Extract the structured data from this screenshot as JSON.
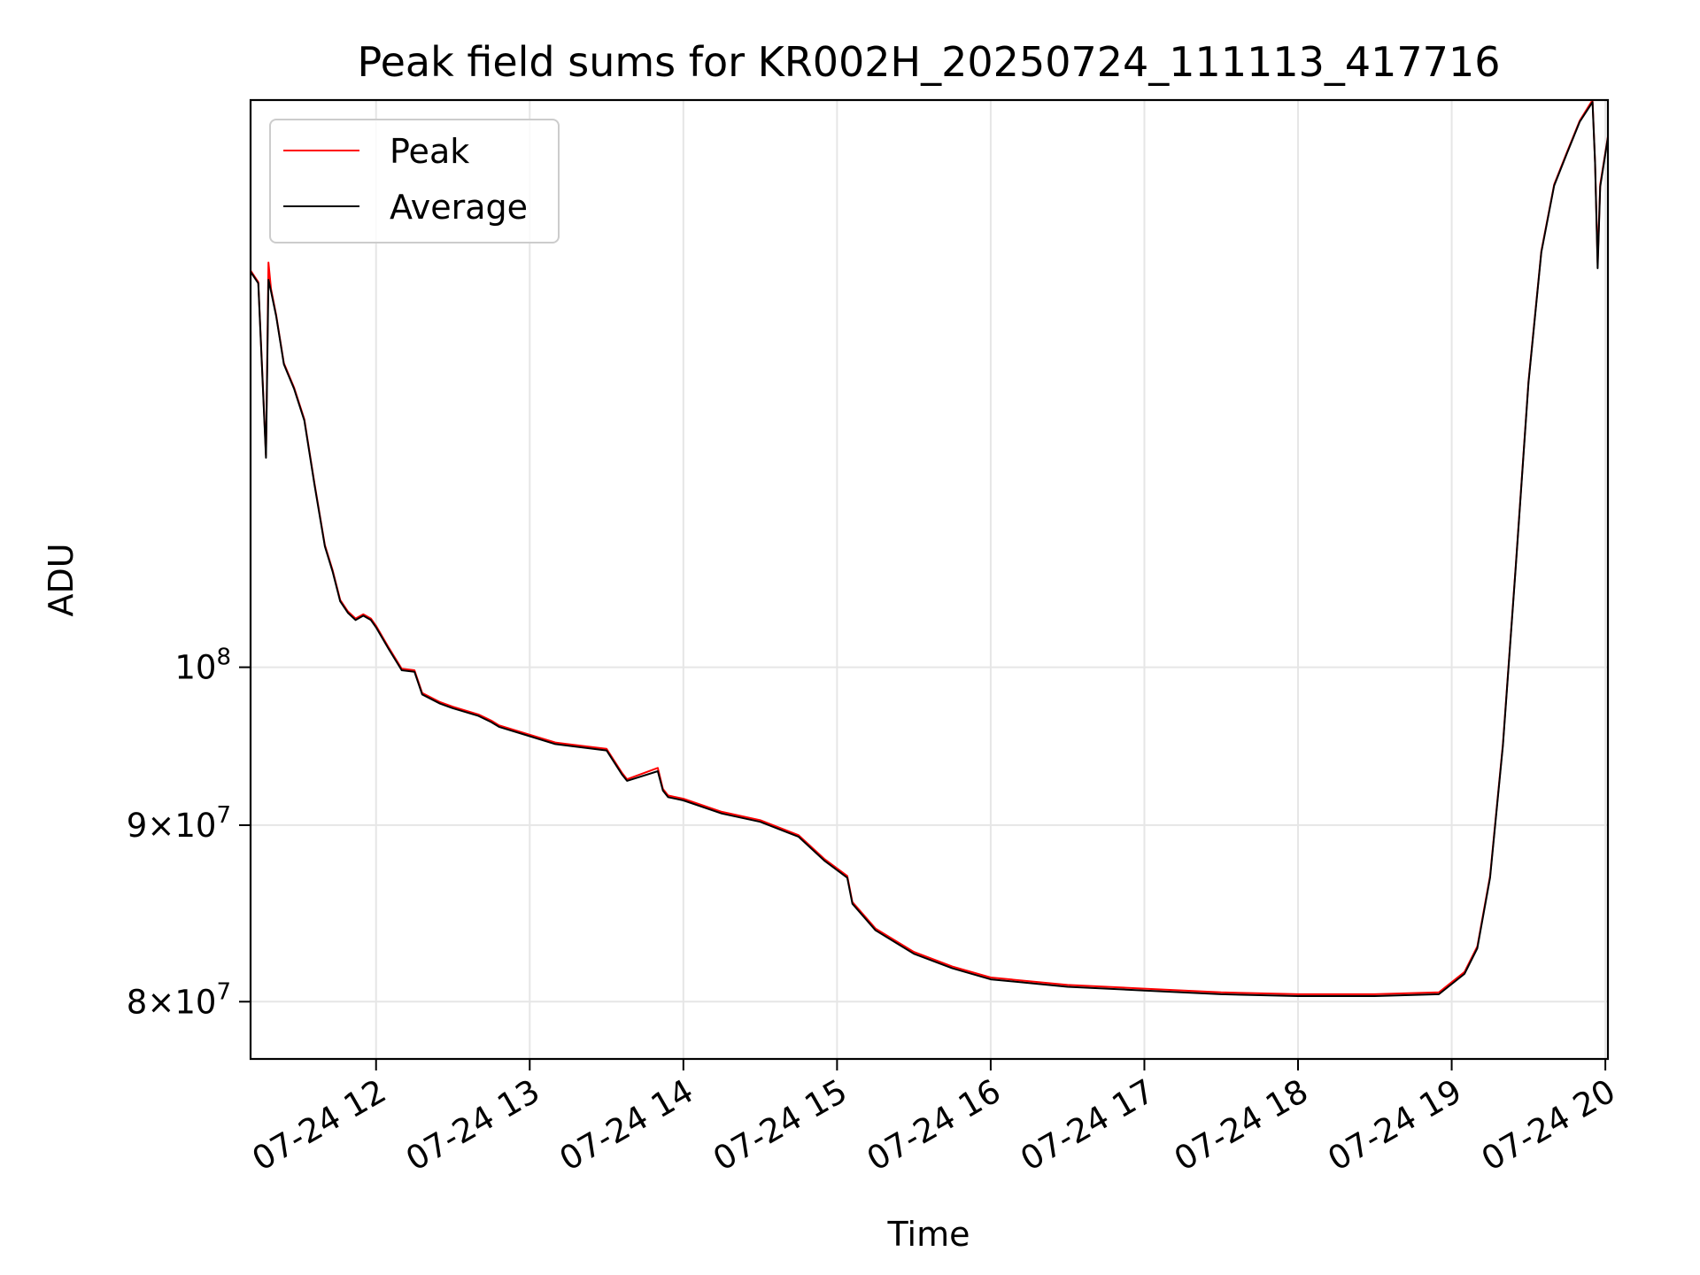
{
  "chart_data": {
    "type": "line",
    "title": "Peak field sums for KR002H_20250724_111113_417716",
    "xlabel": "Time",
    "ylabel": "ADU",
    "x_range": [
      "2025-07-24 11:11",
      "2025-07-24 20:01"
    ],
    "y_scale": "log",
    "ylim": [
      77000000,
      146000000
    ],
    "x_ticks": [
      {
        "x": "2025-07-24 12:00",
        "label": "07-24 12"
      },
      {
        "x": "2025-07-24 13:00",
        "label": "07-24 13"
      },
      {
        "x": "2025-07-24 14:00",
        "label": "07-24 14"
      },
      {
        "x": "2025-07-24 15:00",
        "label": "07-24 15"
      },
      {
        "x": "2025-07-24 16:00",
        "label": "07-24 16"
      },
      {
        "x": "2025-07-24 17:00",
        "label": "07-24 17"
      },
      {
        "x": "2025-07-24 18:00",
        "label": "07-24 18"
      },
      {
        "x": "2025-07-24 19:00",
        "label": "07-24 19"
      },
      {
        "x": "2025-07-24 20:00",
        "label": "07-24 20"
      }
    ],
    "y_ticks": [
      {
        "y": 80000000,
        "mantissa": "8",
        "base": "10",
        "exp": "7"
      },
      {
        "y": 90000000,
        "mantissa": "9",
        "base": "10",
        "exp": "7"
      },
      {
        "y": 100000000,
        "mantissa": "",
        "base": "10",
        "exp": "8"
      }
    ],
    "grid": true,
    "legend": {
      "placement": "upper-left"
    },
    "series": [
      {
        "name": "Peak",
        "color": "#ff0000",
        "x": [
          "2025-07-24 11:11",
          "2025-07-24 11:14",
          "2025-07-24 11:17",
          "2025-07-24 11:18",
          "2025-07-24 11:19",
          "2025-07-24 11:21",
          "2025-07-24 11:24",
          "2025-07-24 11:28",
          "2025-07-24 11:32",
          "2025-07-24 11:36",
          "2025-07-24 11:40",
          "2025-07-24 11:43",
          "2025-07-24 11:46",
          "2025-07-24 11:49",
          "2025-07-24 11:52",
          "2025-07-24 11:55",
          "2025-07-24 11:58",
          "2025-07-24 12:00",
          "2025-07-24 12:05",
          "2025-07-24 12:10",
          "2025-07-24 12:15",
          "2025-07-24 12:18",
          "2025-07-24 12:25",
          "2025-07-24 12:30",
          "2025-07-24 12:40",
          "2025-07-24 12:45",
          "2025-07-24 12:48",
          "2025-07-24 13:00",
          "2025-07-24 13:10",
          "2025-07-24 13:20",
          "2025-07-24 13:30",
          "2025-07-24 13:36",
          "2025-07-24 13:38",
          "2025-07-24 13:50",
          "2025-07-24 13:52",
          "2025-07-24 13:54",
          "2025-07-24 14:00",
          "2025-07-24 14:15",
          "2025-07-24 14:30",
          "2025-07-24 14:45",
          "2025-07-24 14:55",
          "2025-07-24 15:04",
          "2025-07-24 15:06",
          "2025-07-24 15:15",
          "2025-07-24 15:30",
          "2025-07-24 15:45",
          "2025-07-24 16:00",
          "2025-07-24 16:30",
          "2025-07-24 17:00",
          "2025-07-24 17:30",
          "2025-07-24 18:00",
          "2025-07-24 18:30",
          "2025-07-24 18:55",
          "2025-07-24 19:05",
          "2025-07-24 19:10",
          "2025-07-24 19:15",
          "2025-07-24 19:20",
          "2025-07-24 19:25",
          "2025-07-24 19:30",
          "2025-07-24 19:35",
          "2025-07-24 19:40",
          "2025-07-24 19:45",
          "2025-07-24 19:50",
          "2025-07-24 19:55",
          "2025-07-24 19:56",
          "2025-07-24 19:57",
          "2025-07-24 19:58",
          "2025-07-24 20:01"
        ],
        "y": [
          130300000,
          129300000,
          115200000,
          131000000,
          128700000,
          126500000,
          122500000,
          120500000,
          118000000,
          113000000,
          108500000,
          106700000,
          104600000,
          103800000,
          103300000,
          103600000,
          103300000,
          102800000,
          101300000,
          99900000,
          99800000,
          98300000,
          97700000,
          97400000,
          96900000,
          96500000,
          96200000,
          95600000,
          95100000,
          94900000,
          94700000,
          93200000,
          92800000,
          93500000,
          92200000,
          91800000,
          91600000,
          90800000,
          90300000,
          89400000,
          88000000,
          87000000,
          85500000,
          84000000,
          82700000,
          81900000,
          81300000,
          80900000,
          80700000,
          80500000,
          80400000,
          80400000,
          80500000,
          81600000,
          83000000,
          87000000,
          95000000,
          107000000,
          121000000,
          132000000,
          138000000,
          141000000,
          144000000,
          146000000,
          140000000,
          131000000,
          138000000,
          142500000
        ]
      },
      {
        "name": "Average",
        "color": "#000000",
        "x": [
          "2025-07-24 11:11",
          "2025-07-24 11:14",
          "2025-07-24 11:17",
          "2025-07-24 11:18",
          "2025-07-24 11:19",
          "2025-07-24 11:21",
          "2025-07-24 11:24",
          "2025-07-24 11:28",
          "2025-07-24 11:32",
          "2025-07-24 11:36",
          "2025-07-24 11:40",
          "2025-07-24 11:43",
          "2025-07-24 11:46",
          "2025-07-24 11:49",
          "2025-07-24 11:52",
          "2025-07-24 11:55",
          "2025-07-24 11:58",
          "2025-07-24 12:00",
          "2025-07-24 12:05",
          "2025-07-24 12:10",
          "2025-07-24 12:15",
          "2025-07-24 12:18",
          "2025-07-24 12:25",
          "2025-07-24 12:30",
          "2025-07-24 12:40",
          "2025-07-24 12:45",
          "2025-07-24 12:48",
          "2025-07-24 13:00",
          "2025-07-24 13:10",
          "2025-07-24 13:20",
          "2025-07-24 13:30",
          "2025-07-24 13:36",
          "2025-07-24 13:38",
          "2025-07-24 13:50",
          "2025-07-24 13:52",
          "2025-07-24 13:54",
          "2025-07-24 14:00",
          "2025-07-24 14:15",
          "2025-07-24 14:30",
          "2025-07-24 14:45",
          "2025-07-24 14:55",
          "2025-07-24 15:04",
          "2025-07-24 15:06",
          "2025-07-24 15:15",
          "2025-07-24 15:30",
          "2025-07-24 15:45",
          "2025-07-24 16:00",
          "2025-07-24 16:30",
          "2025-07-24 17:00",
          "2025-07-24 17:30",
          "2025-07-24 18:00",
          "2025-07-24 18:30",
          "2025-07-24 18:55",
          "2025-07-24 19:05",
          "2025-07-24 19:10",
          "2025-07-24 19:15",
          "2025-07-24 19:20",
          "2025-07-24 19:25",
          "2025-07-24 19:30",
          "2025-07-24 19:35",
          "2025-07-24 19:40",
          "2025-07-24 19:45",
          "2025-07-24 19:50",
          "2025-07-24 19:55",
          "2025-07-24 19:56",
          "2025-07-24 19:57",
          "2025-07-24 19:58",
          "2025-07-24 20:01"
        ],
        "y": [
          130200000,
          129200000,
          115000000,
          129500000,
          128500000,
          126400000,
          122400000,
          120400000,
          117900000,
          112900000,
          108400000,
          106600000,
          104500000,
          103700000,
          103200000,
          103500000,
          103200000,
          102700000,
          101200000,
          99800000,
          99700000,
          98200000,
          97600000,
          97300000,
          96800000,
          96400000,
          96100000,
          95500000,
          95000000,
          94800000,
          94600000,
          93100000,
          92700000,
          93300000,
          92100000,
          91700000,
          91500000,
          90700000,
          90200000,
          89300000,
          87900000,
          86900000,
          85400000,
          83900000,
          82600000,
          81800000,
          81200000,
          80800000,
          80600000,
          80400000,
          80300000,
          80300000,
          80400000,
          81500000,
          82900000,
          86900000,
          94900000,
          106900000,
          120900000,
          131900000,
          137900000,
          140900000,
          143900000,
          145800000,
          140000000,
          130500000,
          137800000,
          142400000
        ]
      }
    ]
  }
}
